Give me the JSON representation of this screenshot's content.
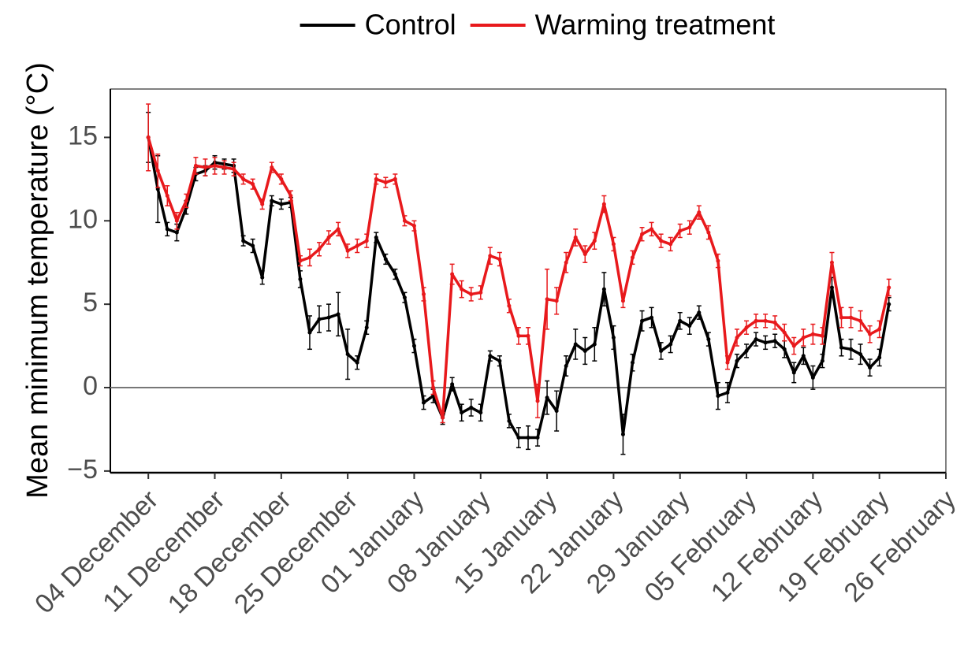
{
  "chart_data": {
    "type": "line",
    "y_label": "Mean minimum temperature (°C)",
    "x": [
      "04 December",
      "05 December",
      "06 December",
      "07 December",
      "08 December",
      "09 December",
      "10 December",
      "11 December",
      "12 December",
      "13 December",
      "14 December",
      "15 December",
      "16 December",
      "17 December",
      "18 December",
      "19 December",
      "20 December",
      "21 December",
      "22 December",
      "23 December",
      "24 December",
      "25 December",
      "26 December",
      "27 December",
      "28 December",
      "29 December",
      "30 December",
      "31 December",
      "01 January",
      "02 January",
      "03 January",
      "04 January",
      "05 January",
      "06 January",
      "07 January",
      "08 January",
      "09 January",
      "10 January",
      "11 January",
      "12 January",
      "13 January",
      "14 January",
      "15 January",
      "16 January",
      "17 January",
      "18 January",
      "19 January",
      "20 January",
      "21 January",
      "22 January",
      "23 January",
      "24 January",
      "25 January",
      "26 January",
      "27 January",
      "28 January",
      "29 January",
      "30 January",
      "31 January",
      "01 February",
      "02 February",
      "03 February",
      "04 February",
      "05 February",
      "06 February",
      "07 February",
      "08 February",
      "09 February",
      "10 February",
      "11 February",
      "12 February",
      "13 February",
      "14 February",
      "15 February",
      "16 February",
      "17 February",
      "18 February",
      "19 February",
      "20 February"
    ],
    "series": [
      {
        "name": "Control",
        "color": "#000000",
        "values": [
          15.0,
          11.9,
          9.5,
          9.3,
          10.8,
          12.8,
          13.0,
          13.5,
          13.4,
          13.3,
          8.8,
          8.5,
          6.6,
          11.2,
          11.0,
          11.1,
          6.5,
          3.3,
          4.1,
          4.2,
          4.4,
          2.0,
          1.5,
          3.6,
          9.0,
          7.7,
          6.8,
          5.4,
          2.5,
          -0.9,
          -0.5,
          -1.8,
          0.2,
          -1.5,
          -1.2,
          -1.5,
          1.9,
          1.6,
          -2.0,
          -3.0,
          -3.0,
          -3.0,
          -0.6,
          -1.4,
          1.3,
          2.6,
          2.2,
          2.6,
          5.9,
          3.0,
          -2.8,
          1.5,
          4.0,
          4.2,
          2.2,
          2.6,
          4.0,
          3.7,
          4.5,
          2.9,
          -0.5,
          -0.3,
          1.6,
          2.2,
          2.9,
          2.7,
          2.8,
          2.3,
          0.9,
          1.9,
          0.6,
          1.6,
          6.0,
          2.4,
          2.3,
          2.0,
          1.2,
          1.8,
          5.0
        ],
        "errors": [
          1.5,
          2.0,
          0.4,
          0.5,
          0.4,
          0.4,
          0.3,
          0.4,
          0.3,
          0.4,
          0.3,
          0.4,
          0.4,
          0.3,
          0.3,
          0.3,
          0.5,
          1.0,
          0.8,
          0.8,
          1.3,
          1.5,
          0.4,
          0.4,
          0.3,
          0.3,
          0.3,
          0.3,
          0.4,
          0.4,
          0.4,
          0.4,
          0.4,
          0.5,
          0.5,
          0.5,
          0.3,
          0.3,
          0.4,
          0.6,
          0.7,
          0.5,
          1.0,
          1.2,
          0.6,
          0.9,
          0.8,
          1.0,
          1.0,
          0.7,
          1.2,
          0.5,
          0.6,
          0.6,
          0.5,
          0.5,
          0.5,
          0.5,
          0.4,
          0.4,
          0.8,
          0.6,
          0.4,
          0.4,
          0.4,
          0.4,
          0.4,
          0.5,
          0.6,
          0.5,
          0.7,
          0.4,
          0.6,
          0.5,
          0.6,
          0.6,
          0.5,
          0.5,
          0.4
        ]
      },
      {
        "name": "Warming treatment",
        "color": "#e8191c",
        "values": [
          15.0,
          13.0,
          11.5,
          10.0,
          11.2,
          13.3,
          13.2,
          13.3,
          13.2,
          13.1,
          12.5,
          12.2,
          11.0,
          13.2,
          12.5,
          11.5,
          7.6,
          7.8,
          8.3,
          9.0,
          9.5,
          8.2,
          8.5,
          8.8,
          12.5,
          12.3,
          12.5,
          10.0,
          9.7,
          5.6,
          0.0,
          -1.8,
          6.8,
          5.9,
          5.6,
          5.7,
          7.9,
          7.7,
          4.9,
          3.1,
          3.1,
          -0.8,
          5.3,
          5.2,
          7.5,
          9.0,
          8.0,
          8.8,
          11.0,
          8.6,
          5.2,
          7.8,
          9.2,
          9.5,
          8.8,
          8.6,
          9.4,
          9.6,
          10.5,
          9.3,
          7.6,
          1.5,
          3.0,
          3.6,
          4.0,
          4.0,
          3.9,
          3.3,
          2.5,
          3.0,
          3.2,
          3.1,
          7.5,
          4.2,
          4.2,
          4.0,
          3.2,
          3.5,
          6.0
        ],
        "errors": [
          2.0,
          1.0,
          0.6,
          0.5,
          0.4,
          0.5,
          0.5,
          0.5,
          0.4,
          0.4,
          0.3,
          0.3,
          0.3,
          0.3,
          0.3,
          0.3,
          0.3,
          0.5,
          0.4,
          0.4,
          0.4,
          0.4,
          0.4,
          0.4,
          0.3,
          0.3,
          0.3,
          0.3,
          0.3,
          0.4,
          0.4,
          0.3,
          0.6,
          0.5,
          0.4,
          0.4,
          0.5,
          0.4,
          0.4,
          0.5,
          0.5,
          1.0,
          1.8,
          0.8,
          0.6,
          0.5,
          0.5,
          0.5,
          0.5,
          0.4,
          0.4,
          0.4,
          0.4,
          0.4,
          0.4,
          0.4,
          0.4,
          0.4,
          0.4,
          0.4,
          0.4,
          0.4,
          0.5,
          0.4,
          0.4,
          0.4,
          0.4,
          0.5,
          0.5,
          0.5,
          0.6,
          0.5,
          0.6,
          0.6,
          0.6,
          0.6,
          0.5,
          0.5,
          0.5
        ]
      }
    ],
    "xlim": [
      "30 November",
      "26 February"
    ],
    "xticks": [
      "04 December",
      "11 December",
      "18 December",
      "25 December",
      "01 January",
      "08 January",
      "15 January",
      "22 January",
      "29 January",
      "05 February",
      "12 February",
      "19 February",
      "26 February"
    ],
    "ylim": [
      -5.1,
      17.9
    ],
    "yticks": [
      {
        "value": -5,
        "label": "−5"
      },
      0,
      5,
      10,
      15
    ],
    "reference_line": 0,
    "legend": "top"
  }
}
